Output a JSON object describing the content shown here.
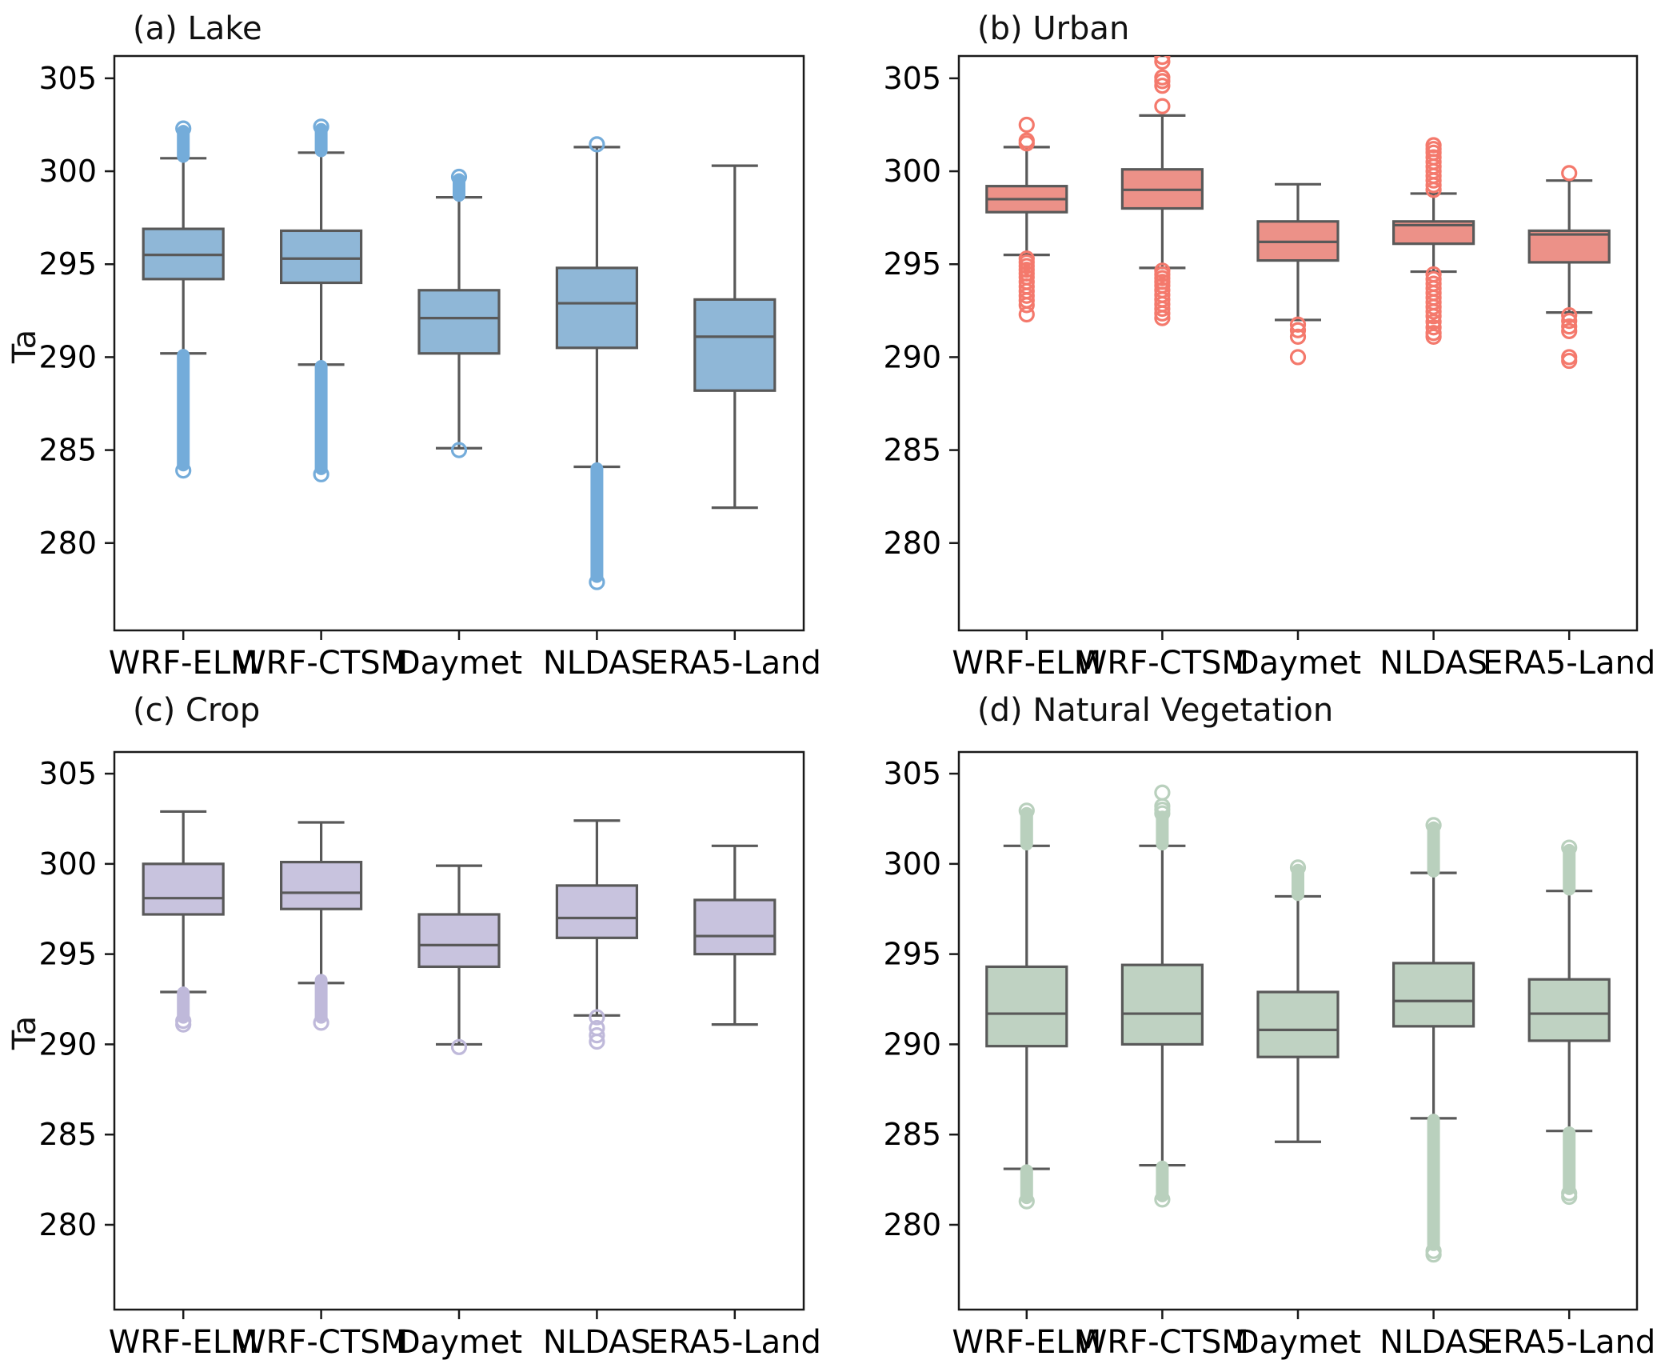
{
  "chart_data": {
    "type": "boxplot-grid",
    "categories": [
      "WRF-ELM",
      "WRF-CTSM",
      "Daymet",
      "NLDAS",
      "ERA5-Land"
    ],
    "yticks": [
      280,
      285,
      290,
      295,
      300,
      305
    ],
    "ylim": [
      275.3,
      306.2
    ],
    "grid": "off",
    "edge_color": "#595959",
    "spine_color": "#1a1a1a",
    "panels": [
      {
        "id": "a",
        "title": "(a) Lake",
        "ylabel": "Ta",
        "color": "#8fb7d7",
        "outlier_color": "#74acda",
        "boxes": [
          {
            "label": "WRF-ELM",
            "whislo": 290.2,
            "q1": 294.2,
            "med": 295.5,
            "q3": 296.9,
            "whishi": 300.7,
            "stem_up": [
              300.8,
              302.15
            ],
            "circles_up": [
              302.3
            ],
            "stem_dn": [
              290.1,
              284.2
            ],
            "circles_dn": [
              283.9
            ]
          },
          {
            "label": "WRF-CTSM",
            "whislo": 289.6,
            "q1": 294.0,
            "med": 295.3,
            "q3": 296.8,
            "whishi": 301.0,
            "stem_up": [
              301.1,
              302.25
            ],
            "circles_up": [
              302.4
            ],
            "stem_dn": [
              289.5,
              284.0
            ],
            "circles_dn": [
              283.7
            ]
          },
          {
            "label": "Daymet",
            "whislo": 285.1,
            "q1": 290.2,
            "med": 292.1,
            "q3": 293.6,
            "whishi": 298.6,
            "stem_up": [
              298.7,
              299.55
            ],
            "circles_up": [
              299.7
            ],
            "stem_dn": null,
            "circles_dn": [
              285.0
            ]
          },
          {
            "label": "NLDAS",
            "whislo": 284.1,
            "q1": 290.5,
            "med": 292.9,
            "q3": 294.8,
            "whishi": 301.3,
            "stem_up": null,
            "circles_up": [
              301.45
            ],
            "stem_dn": [
              284.0,
              278.2
            ],
            "circles_dn": [
              277.9
            ]
          },
          {
            "label": "ERA5-Land",
            "whislo": 281.9,
            "q1": 288.2,
            "med": 291.1,
            "q3": 293.1,
            "whishi": 300.3,
            "stem_up": null,
            "circles_up": [],
            "stem_dn": null,
            "circles_dn": []
          }
        ]
      },
      {
        "id": "b",
        "title": "(b) Urban",
        "ylabel": null,
        "color": "#ec9188",
        "outlier_color": "#f4796c",
        "boxes": [
          {
            "label": "WRF-ELM",
            "whislo": 295.5,
            "q1": 297.8,
            "med": 298.5,
            "q3": 299.2,
            "whishi": 301.3,
            "stem_up": null,
            "circles_up": [
              301.5,
              301.65,
              302.5
            ],
            "stem_dn": null,
            "circles_dn": [
              295.3,
              295.1,
              294.9,
              294.7,
              294.5,
              294.3,
              294.05,
              293.8,
              293.55,
              293.3,
              293.05,
              292.8,
              292.3
            ]
          },
          {
            "label": "WRF-CTSM",
            "whislo": 294.8,
            "q1": 298.0,
            "med": 299.0,
            "q3": 300.1,
            "whishi": 303.0,
            "stem_up": null,
            "circles_up": [
              303.5,
              304.6,
              304.85,
              305.05,
              305.9,
              306.15
            ],
            "stem_dn": null,
            "circles_dn": [
              294.65,
              294.45,
              294.25,
              294.05,
              293.85,
              293.6,
              293.35,
              293.1,
              292.85,
              292.6,
              292.35,
              292.1
            ]
          },
          {
            "label": "Daymet",
            "whislo": 292.0,
            "q1": 295.2,
            "med": 296.2,
            "q3": 297.3,
            "whishi": 299.3,
            "stem_up": null,
            "circles_up": [],
            "stem_dn": null,
            "circles_dn": [
              291.75,
              291.45,
              291.1,
              290.0
            ]
          },
          {
            "label": "NLDAS",
            "whislo": 294.6,
            "q1": 296.1,
            "med": 297.1,
            "q3": 297.3,
            "whishi": 298.8,
            "stem_up": null,
            "circles_up": [
              299.0,
              299.25,
              299.5,
              299.75,
              300.0,
              300.25,
              300.5,
              300.75,
              301.0,
              301.2,
              301.4
            ],
            "stem_dn": null,
            "circles_dn": [
              294.45,
              294.2,
              293.95,
              293.7,
              293.45,
              293.2,
              292.95,
              292.7,
              292.45,
              292.2,
              291.9,
              291.6,
              291.3,
              291.1
            ]
          },
          {
            "label": "ERA5-Land",
            "whislo": 292.4,
            "q1": 295.1,
            "med": 296.6,
            "q3": 296.8,
            "whishi": 299.5,
            "stem_up": null,
            "circles_up": [
              299.9
            ],
            "stem_dn": null,
            "circles_dn": [
              292.25,
              291.95,
              291.65,
              291.4,
              290.0,
              289.8
            ]
          }
        ]
      },
      {
        "id": "c",
        "title": "(c) Crop",
        "ylabel": "Ta",
        "color": "#c8c3de",
        "outlier_color": "#bfb9da",
        "boxes": [
          {
            "label": "WRF-ELM",
            "whislo": 292.9,
            "q1": 297.2,
            "med": 298.1,
            "q3": 300.0,
            "whishi": 302.9,
            "stem_up": null,
            "circles_up": [],
            "stem_dn": [
              292.85,
              291.5
            ],
            "circles_dn": [
              291.3,
              291.1
            ]
          },
          {
            "label": "WRF-CTSM",
            "whislo": 293.4,
            "q1": 297.5,
            "med": 298.4,
            "q3": 300.1,
            "whishi": 302.3,
            "stem_up": null,
            "circles_up": [],
            "stem_dn": [
              293.55,
              291.5
            ],
            "circles_dn": [
              291.2
            ]
          },
          {
            "label": "Daymet",
            "whislo": 290.0,
            "q1": 294.3,
            "med": 295.5,
            "q3": 297.2,
            "whishi": 299.9,
            "stem_up": null,
            "circles_up": [],
            "stem_dn": null,
            "circles_dn": [
              289.85
            ]
          },
          {
            "label": "NLDAS",
            "whislo": 291.6,
            "q1": 295.9,
            "med": 297.0,
            "q3": 298.8,
            "whishi": 302.4,
            "stem_up": null,
            "circles_up": [],
            "stem_dn": null,
            "circles_dn": [
              291.5,
              290.9,
              290.5,
              290.15
            ]
          },
          {
            "label": "ERA5-Land",
            "whislo": 291.1,
            "q1": 295.0,
            "med": 296.0,
            "q3": 298.0,
            "whishi": 301.0,
            "stem_up": null,
            "circles_up": [],
            "stem_dn": null,
            "circles_dn": []
          }
        ]
      },
      {
        "id": "d",
        "title": "(d) Natural Vegetation",
        "ylabel": null,
        "color": "#bfd2c2",
        "outlier_color": "#b9d0bd",
        "boxes": [
          {
            "label": "WRF-ELM",
            "whislo": 283.1,
            "q1": 289.9,
            "med": 291.7,
            "q3": 294.3,
            "whishi": 301.0,
            "stem_up": [
              301.1,
              302.8
            ],
            "circles_up": [
              302.95
            ],
            "stem_dn": [
              283.0,
              281.5
            ],
            "circles_dn": [
              281.3
            ]
          },
          {
            "label": "WRF-CTSM",
            "whislo": 283.3,
            "q1": 290.0,
            "med": 291.7,
            "q3": 294.4,
            "whishi": 301.0,
            "stem_up": [
              301.1,
              302.6
            ],
            "circles_up": [
              302.8,
              303.0,
              303.2,
              303.95
            ],
            "stem_dn": [
              283.2,
              281.6
            ],
            "circles_dn": [
              281.4
            ]
          },
          {
            "label": "Daymet",
            "whislo": 284.6,
            "q1": 289.3,
            "med": 290.8,
            "q3": 292.9,
            "whishi": 298.2,
            "stem_up": [
              298.3,
              299.65
            ],
            "circles_up": [
              299.8
            ],
            "stem_dn": null,
            "circles_dn": []
          },
          {
            "label": "NLDAS",
            "whislo": 285.9,
            "q1": 291.0,
            "med": 292.4,
            "q3": 294.5,
            "whishi": 299.5,
            "stem_up": [
              299.6,
              302.0
            ],
            "circles_up": [
              302.15
            ],
            "stem_dn": [
              285.8,
              278.9
            ],
            "circles_dn": [
              278.55,
              278.35
            ]
          },
          {
            "label": "ERA5-Land",
            "whislo": 285.2,
            "q1": 290.2,
            "med": 291.7,
            "q3": 293.6,
            "whishi": 298.5,
            "stem_up": [
              298.6,
              300.75
            ],
            "circles_up": [
              300.9
            ],
            "stem_dn": [
              285.1,
              282.0
            ],
            "circles_dn": [
              281.75,
              281.55
            ]
          }
        ]
      }
    ]
  }
}
